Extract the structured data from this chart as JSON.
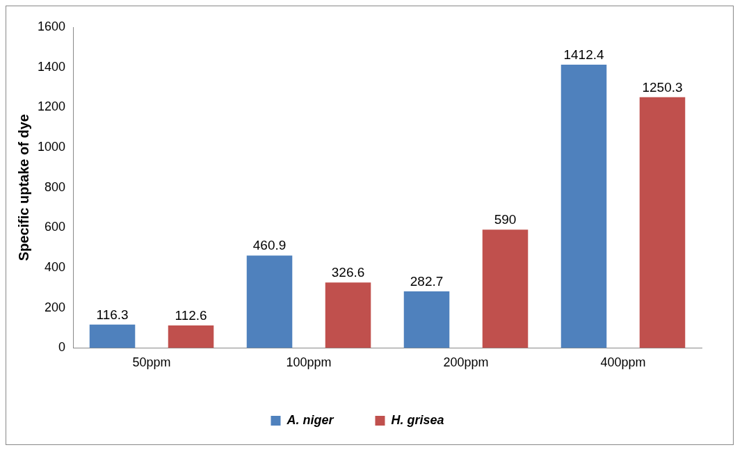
{
  "chart_data": {
    "type": "bar",
    "ylabel": "Specific uptake of dye",
    "categories": [
      "50ppm",
      "100ppm",
      "200ppm",
      "400ppm"
    ],
    "series": [
      {
        "name": "A. niger",
        "color": "#4f81bd",
        "values": [
          116.3,
          460.9,
          282.7,
          1412.4
        ]
      },
      {
        "name": "H. grisea",
        "color": "#c0504d",
        "values": [
          112.6,
          326.6,
          590,
          1250.3
        ]
      }
    ],
    "ylim": [
      0,
      1600
    ],
    "yticks": [
      0,
      200,
      400,
      600,
      800,
      1000,
      1200,
      1400,
      1600
    ],
    "legend": "bottom",
    "data_labels": true
  }
}
